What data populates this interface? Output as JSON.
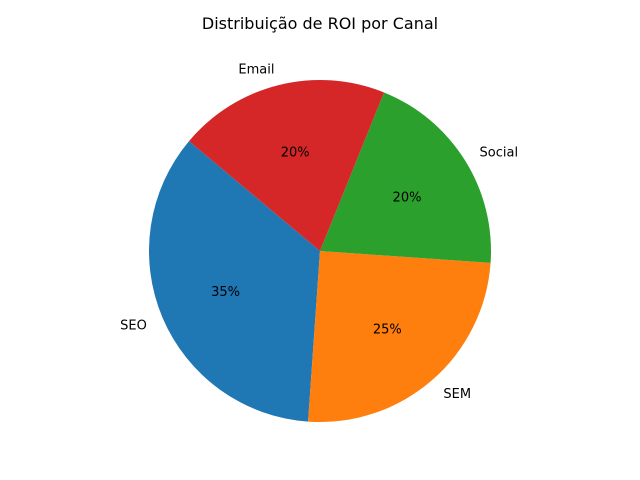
{
  "chart_data": {
    "type": "pie",
    "title": "Distribuição de ROI por Canal",
    "labels": [
      "SEO",
      "SEM",
      "Social",
      "Email"
    ],
    "values": [
      35,
      25,
      20,
      20
    ],
    "pct_labels": [
      "35%",
      "25%",
      "20%",
      "20%"
    ],
    "colors": [
      "#1f77b4",
      "#ff7f0e",
      "#2ca02c",
      "#d62728"
    ],
    "start_angle_deg": 140,
    "direction": "counterclockwise"
  }
}
